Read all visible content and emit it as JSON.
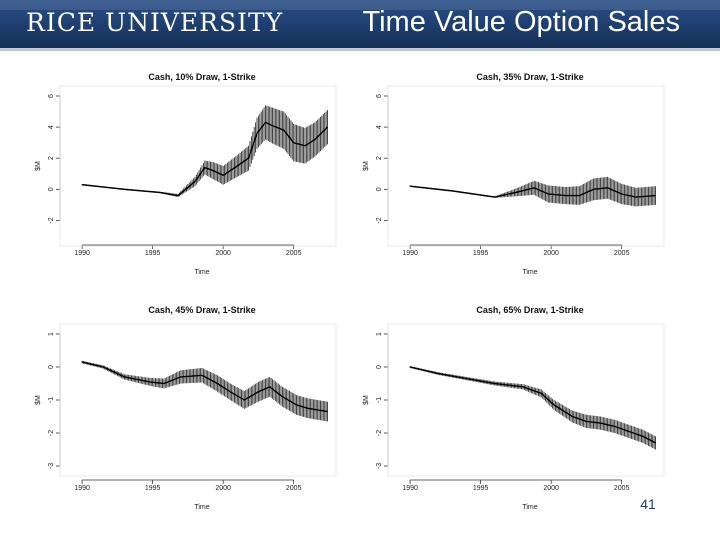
{
  "header": {
    "logo": "RICE UNIVERSITY",
    "title": "Time Value Option Sales"
  },
  "page_number": "41",
  "colors": {
    "header_dark": "#1d3c6c",
    "data": "#111111"
  },
  "chart_data": [
    {
      "type": "line",
      "id": "c10",
      "title": "Cash, 10% Draw, 1-Strike",
      "xlabel": "Time",
      "ylabel": "$M",
      "xlim": [
        1989,
        2008
      ],
      "ylim": [
        -3,
        6
      ],
      "xticks": [
        1990,
        1995,
        2000,
        2005
      ],
      "xtick_labels": [
        "1990",
        "1995",
        "2000",
        "2005"
      ],
      "yticks": [
        -2,
        0,
        2,
        4,
        6
      ],
      "ytick_labels": [
        "-2",
        "0",
        "2",
        "4",
        "6"
      ],
      "series": [
        {
          "name": "central",
          "x": [
            1990,
            1993,
            1995.5,
            1996.8,
            1998,
            1998.7,
            1999.3,
            2000,
            2001,
            2001.8,
            2002.4,
            2003,
            2003.5,
            2004.3,
            2005,
            2005.8,
            2006.5,
            2007.4
          ],
          "y": [
            0.3,
            0.0,
            -0.2,
            -0.4,
            0.5,
            1.4,
            1.2,
            0.9,
            1.5,
            2.0,
            3.6,
            4.3,
            4.1,
            3.8,
            3.0,
            2.8,
            3.2,
            4.0
          ],
          "spread": [
            0.05,
            0.05,
            0.05,
            0.1,
            0.3,
            0.45,
            0.55,
            0.6,
            0.7,
            0.8,
            1.0,
            1.1,
            1.15,
            1.2,
            1.2,
            1.15,
            1.1,
            1.1
          ]
        }
      ]
    },
    {
      "type": "line",
      "id": "c35",
      "title": "Cash, 35% Draw, 1-Strike",
      "xlabel": "Time",
      "ylabel": "$M",
      "xlim": [
        1989,
        2008
      ],
      "ylim": [
        -3,
        6
      ],
      "xticks": [
        1990,
        1995,
        2000,
        2005
      ],
      "xtick_labels": [
        "1990",
        "1995",
        "2000",
        "2005"
      ],
      "yticks": [
        -2,
        0,
        2,
        4,
        6
      ],
      "ytick_labels": [
        "-2",
        "0",
        "2",
        "4",
        "6"
      ],
      "series": [
        {
          "name": "central",
          "x": [
            1990,
            1993,
            1996,
            1997.5,
            1998.8,
            1999.8,
            2001,
            2002,
            2003,
            2004,
            2005,
            2006,
            2007.4
          ],
          "y": [
            0.2,
            -0.1,
            -0.5,
            -0.2,
            0.1,
            -0.3,
            -0.4,
            -0.4,
            0.0,
            0.1,
            -0.3,
            -0.5,
            -0.4
          ],
          "spread": [
            0.05,
            0.05,
            0.05,
            0.25,
            0.45,
            0.55,
            0.55,
            0.6,
            0.7,
            0.7,
            0.65,
            0.6,
            0.6
          ]
        }
      ]
    },
    {
      "type": "line",
      "id": "c45",
      "title": "Cash, 45% Draw, 1-Strike",
      "xlabel": "Time",
      "ylabel": "$M",
      "xlim": [
        1989,
        2008
      ],
      "ylim": [
        -3,
        1
      ],
      "xticks": [
        1990,
        1995,
        2000,
        2005
      ],
      "xtick_labels": [
        "1990",
        "1995",
        "2000",
        "2005"
      ],
      "yticks": [
        -3,
        -2,
        -1,
        0,
        1
      ],
      "ytick_labels": [
        "-3",
        "-2",
        "-1",
        "0",
        "1"
      ],
      "series": [
        {
          "name": "central",
          "x": [
            1990,
            1991.5,
            1993,
            1994.8,
            1995.8,
            1997,
            1998.5,
            1999.6,
            2000.5,
            2001.5,
            2002.5,
            2003.3,
            2004.2,
            2005.2,
            2006,
            2007.4
          ],
          "y": [
            0.15,
            0.0,
            -0.3,
            -0.45,
            -0.5,
            -0.3,
            -0.25,
            -0.5,
            -0.75,
            -1.0,
            -0.75,
            -0.6,
            -0.9,
            -1.15,
            -1.25,
            -1.35
          ],
          "spread": [
            0.04,
            0.05,
            0.08,
            0.12,
            0.15,
            0.2,
            0.22,
            0.25,
            0.25,
            0.27,
            0.3,
            0.3,
            0.3,
            0.3,
            0.3,
            0.3
          ]
        }
      ]
    },
    {
      "type": "line",
      "id": "c65",
      "title": "Cash, 65% Draw, 1-Strike",
      "xlabel": "Time",
      "ylabel": "$M",
      "xlim": [
        1989,
        2008
      ],
      "ylim": [
        -3,
        1
      ],
      "xticks": [
        1990,
        1995,
        2000,
        2005
      ],
      "xtick_labels": [
        "1990",
        "1995",
        "2000",
        "2005"
      ],
      "yticks": [
        -3,
        -2,
        -1,
        0,
        1
      ],
      "ytick_labels": [
        "-3",
        "-2",
        "-1",
        "0",
        "1"
      ],
      "series": [
        {
          "name": "central",
          "x": [
            1990,
            1992,
            1994,
            1996,
            1998,
            1999.3,
            2000.2,
            2001.5,
            2002.5,
            2003.5,
            2004.5,
            2005.5,
            2006.5,
            2007.4
          ],
          "y": [
            0.0,
            -0.2,
            -0.35,
            -0.5,
            -0.6,
            -0.8,
            -1.15,
            -1.5,
            -1.65,
            -1.7,
            -1.8,
            -1.95,
            -2.1,
            -2.3
          ],
          "spread": [
            0.03,
            0.04,
            0.05,
            0.06,
            0.08,
            0.12,
            0.15,
            0.18,
            0.2,
            0.2,
            0.2,
            0.2,
            0.2,
            0.2
          ]
        }
      ]
    }
  ]
}
